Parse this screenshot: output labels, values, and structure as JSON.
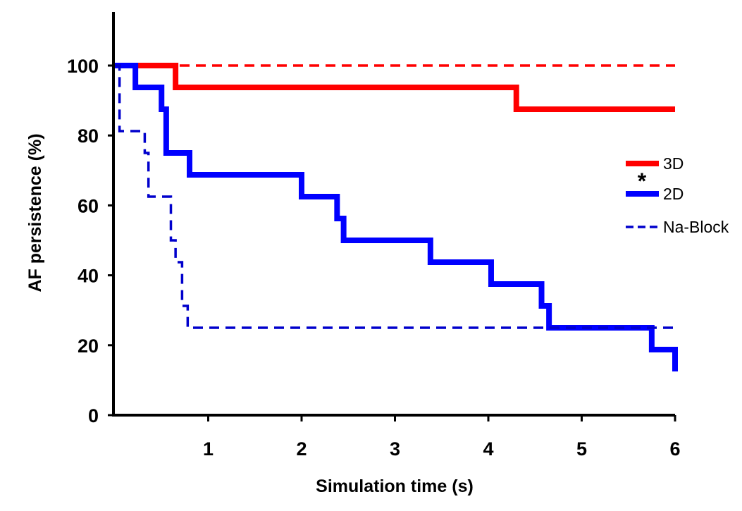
{
  "chart_data": {
    "type": "line",
    "title": "",
    "xlabel": "Simulation time (s)",
    "ylabel": "AF persistence (%)",
    "xlim": [
      0,
      6
    ],
    "ylim": [
      0,
      115
    ],
    "xticks": [
      1,
      2,
      3,
      4,
      5,
      6
    ],
    "yticks": [
      0,
      20,
      40,
      60,
      80,
      100
    ],
    "grid": false,
    "legend_position": "right",
    "annotations": [
      {
        "text": "*",
        "near": "between 3D and 2D legend entries"
      }
    ],
    "series": [
      {
        "name": "3D",
        "color": "#ff0000",
        "style": "solid-thick",
        "step": true,
        "x": [
          0,
          0.65,
          4.3,
          6.0
        ],
        "y": [
          100,
          93.75,
          87.5,
          87.5
        ]
      },
      {
        "name": "",
        "color": "#ff0000",
        "style": "dashed",
        "step": true,
        "x": [
          0,
          6.0
        ],
        "y": [
          100,
          100
        ]
      },
      {
        "name": "2D",
        "color": "#0000ff",
        "style": "solid-thick",
        "step": true,
        "x": [
          0,
          0.22,
          0.5,
          0.55,
          0.8,
          2.0,
          2.38,
          2.45,
          3.38,
          4.03,
          4.57,
          4.65,
          5.75,
          6.0
        ],
        "y": [
          100,
          93.75,
          87.5,
          75,
          68.75,
          62.5,
          56.25,
          50,
          43.75,
          37.5,
          31.25,
          25,
          18.75,
          12.5
        ]
      },
      {
        "name": "Na-Block",
        "color": "#0000cc",
        "style": "dashed",
        "step": true,
        "x": [
          0,
          0.05,
          0.32,
          0.36,
          0.6,
          0.65,
          0.72,
          0.78,
          6.0
        ],
        "y": [
          100,
          81.25,
          75,
          62.5,
          50,
          43.75,
          31.25,
          25,
          25
        ]
      }
    ]
  }
}
